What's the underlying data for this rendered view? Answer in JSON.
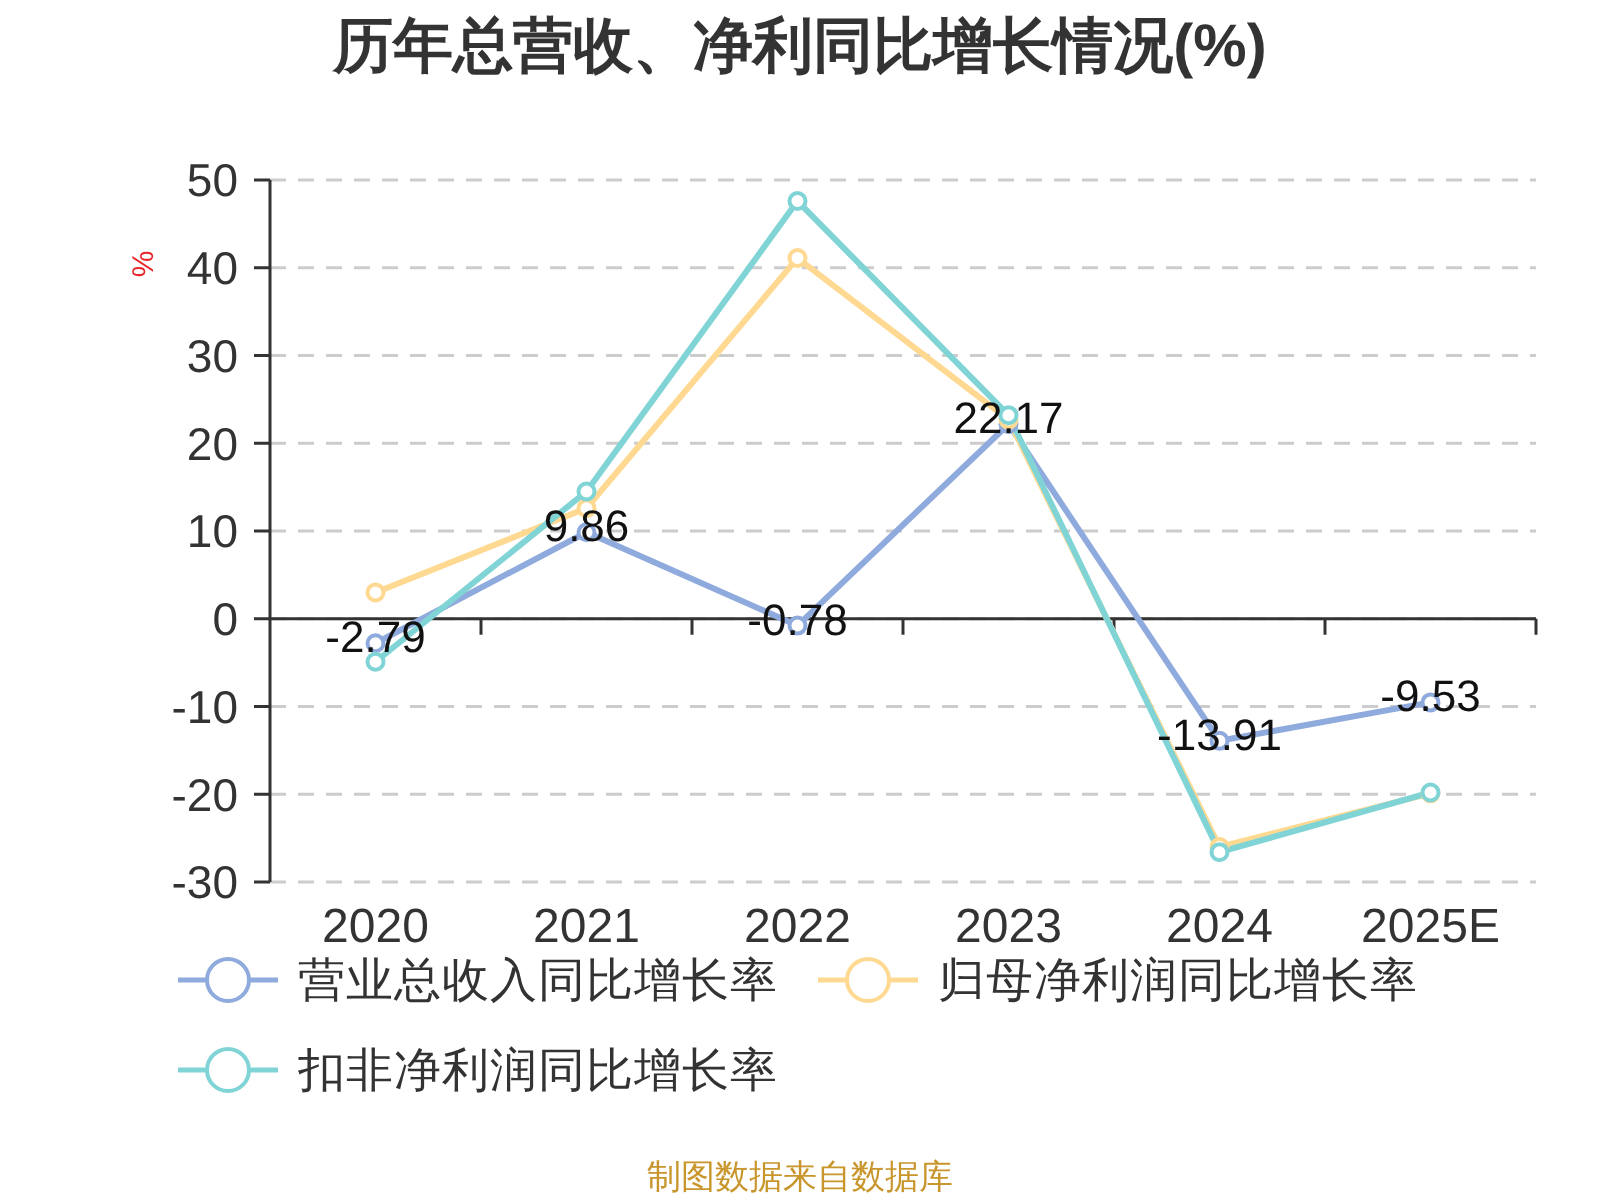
{
  "chart_data": {
    "type": "line",
    "title": "历年总营收、净利同比增长情况(%)",
    "ylabel": "%",
    "categories": [
      "2020",
      "2021",
      "2022",
      "2023",
      "2024",
      "2025E"
    ],
    "series": [
      {
        "name": "营业总收入同比增长率",
        "color": "#8faadc",
        "values": [
          -2.79,
          9.86,
          -0.78,
          22.17,
          -13.91,
          -9.53
        ],
        "value_labels": [
          "-2.79",
          "9.86",
          "-0.78",
          "22.17",
          "-13.91",
          "-9.53"
        ]
      },
      {
        "name": "归母净利润同比增长率",
        "color": "#ffd991",
        "values": [
          3.0,
          12.6,
          41.1,
          22.7,
          -26.0,
          -19.9
        ]
      },
      {
        "name": "扣非净利润同比增长率",
        "color": "#80d4d6",
        "values": [
          -4.9,
          14.5,
          47.6,
          23.2,
          -26.6,
          -19.8
        ]
      }
    ],
    "ylim": [
      -30,
      50
    ],
    "yticks": [
      -30,
      -20,
      -10,
      0,
      10,
      20,
      30,
      40,
      50
    ],
    "grid": "y",
    "legend": "bottom",
    "marker": "circle",
    "line_style": "solid",
    "annotations": [
      "制图数据来自数据库"
    ]
  }
}
